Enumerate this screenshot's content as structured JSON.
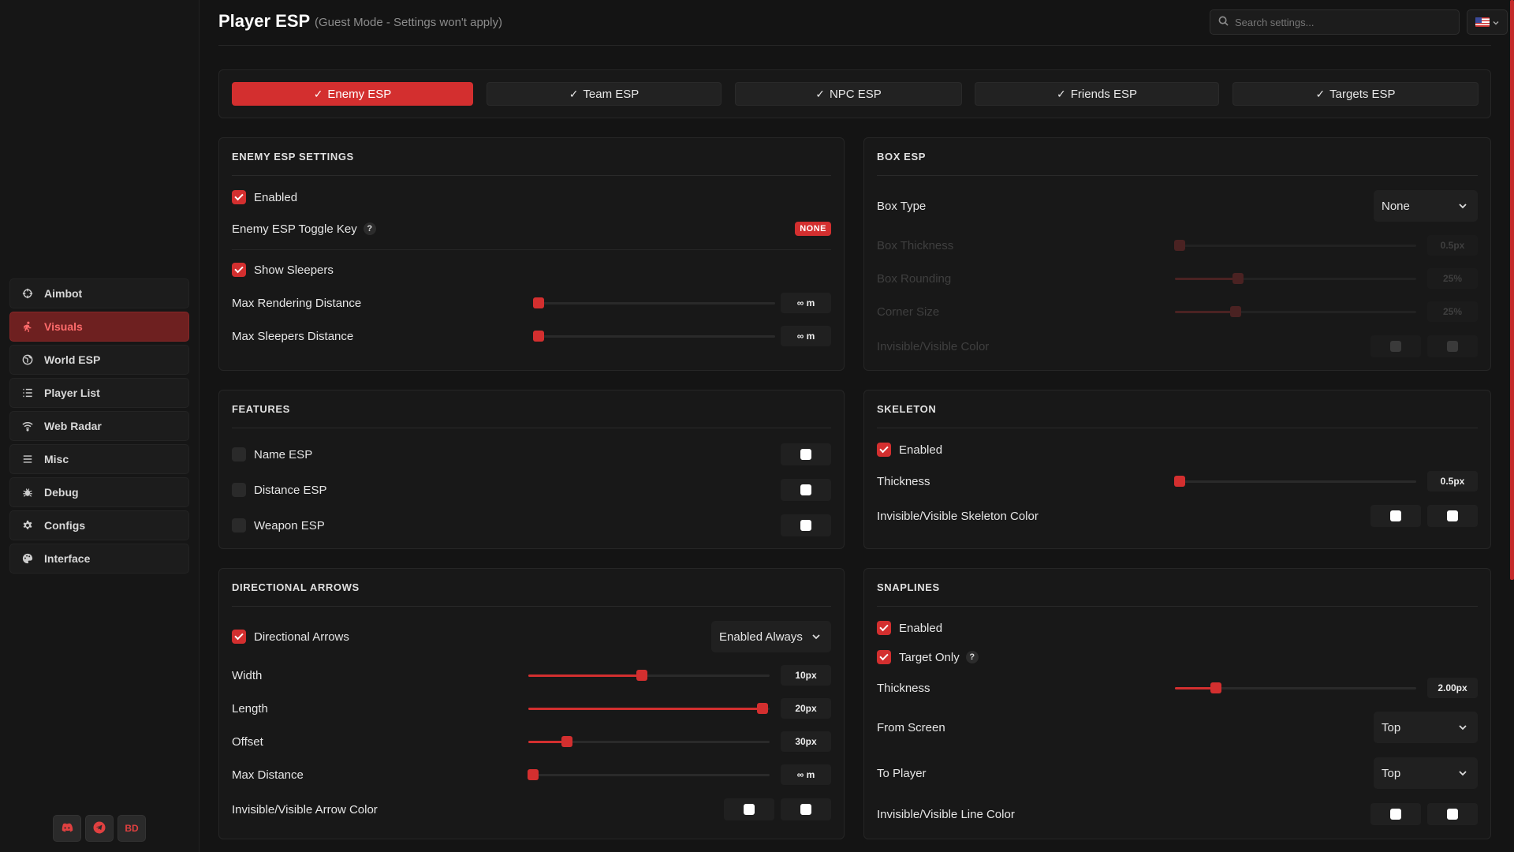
{
  "header": {
    "title": "Player ESP",
    "subtitle": "(Guest Mode - Settings won't apply)",
    "search_placeholder": "Search settings..."
  },
  "sidebar": {
    "items": [
      {
        "label": "Aimbot",
        "icon": "crosshair-icon",
        "active": false
      },
      {
        "label": "Visuals",
        "icon": "running-person-icon",
        "active": true
      },
      {
        "label": "World ESP",
        "icon": "globe-icon",
        "active": false
      },
      {
        "label": "Player List",
        "icon": "list-icon",
        "active": false
      },
      {
        "label": "Web Radar",
        "icon": "wifi-icon",
        "active": false
      },
      {
        "label": "Misc",
        "icon": "menu-icon",
        "active": false
      },
      {
        "label": "Debug",
        "icon": "bug-icon",
        "active": false
      },
      {
        "label": "Configs",
        "icon": "gear-icon",
        "active": false
      },
      {
        "label": "Interface",
        "icon": "palette-icon",
        "active": false
      }
    ],
    "social": [
      {
        "icon": "discord-icon"
      },
      {
        "icon": "telegram-icon"
      },
      {
        "label": "BD"
      }
    ]
  },
  "tabs": [
    {
      "label": "Enemy ESP",
      "active": true
    },
    {
      "label": "Team ESP",
      "active": false
    },
    {
      "label": "NPC ESP",
      "active": false
    },
    {
      "label": "Friends ESP",
      "active": false
    },
    {
      "label": "Targets ESP",
      "active": false
    }
  ],
  "enemy": {
    "title": "ENEMY ESP SETTINGS",
    "enabled": "Enabled",
    "toggle_key_label": "Enemy ESP Toggle Key",
    "help": "?",
    "toggle_key_value": "NONE",
    "show_sleepers": "Show Sleepers",
    "max_render_label": "Max Rendering Distance",
    "max_render_value": "∞ m",
    "max_render_fraction": 0.02,
    "max_sleepers_label": "Max Sleepers Distance",
    "max_sleepers_value": "∞ m",
    "max_sleepers_fraction": 0.02
  },
  "box": {
    "title": "BOX ESP",
    "type_label": "Box Type",
    "type_value": "None",
    "thickness_label": "Box Thickness",
    "thickness_value": "0.5px",
    "thickness_fraction": 0.02,
    "rounding_label": "Box Rounding",
    "rounding_value": "25%",
    "rounding_fraction": 0.26,
    "corner_label": "Corner Size",
    "corner_value": "25%",
    "corner_fraction": 0.25,
    "color_label": "Invisible/Visible Color"
  },
  "features": {
    "title": "FEATURES",
    "items": [
      "Name ESP",
      "Distance ESP",
      "Weapon ESP"
    ]
  },
  "skeleton": {
    "title": "SKELETON",
    "enabled": "Enabled",
    "thickness_label": "Thickness",
    "thickness_value": "0.5px",
    "thickness_fraction": 0.02,
    "color_label": "Invisible/Visible Skeleton Color"
  },
  "arrows": {
    "title": "DIRECTIONAL ARROWS",
    "toggle": "Directional Arrows",
    "mode_value": "Enabled Always",
    "width_label": "Width",
    "width_value": "10px",
    "width_fraction": 0.47,
    "length_label": "Length",
    "length_value": "20px",
    "length_fraction": 0.97,
    "offset_label": "Offset",
    "offset_value": "30px",
    "offset_fraction": 0.16,
    "maxdist_label": "Max Distance",
    "maxdist_value": "∞ m",
    "maxdist_fraction": 0.02,
    "color_label": "Invisible/Visible Arrow Color"
  },
  "snaplines": {
    "title": "SNAPLINES",
    "enabled": "Enabled",
    "target_only": "Target Only",
    "thickness_label": "Thickness",
    "thickness_value": "2.00px",
    "thickness_fraction": 0.17,
    "from_label": "From Screen",
    "from_value": "Top",
    "to_label": "To Player",
    "to_value": "Top",
    "color_label": "Invisible/Visible Line Color"
  },
  "colors": {
    "accent": "#d32f2f",
    "background": "#141414",
    "panel": "#181818"
  }
}
